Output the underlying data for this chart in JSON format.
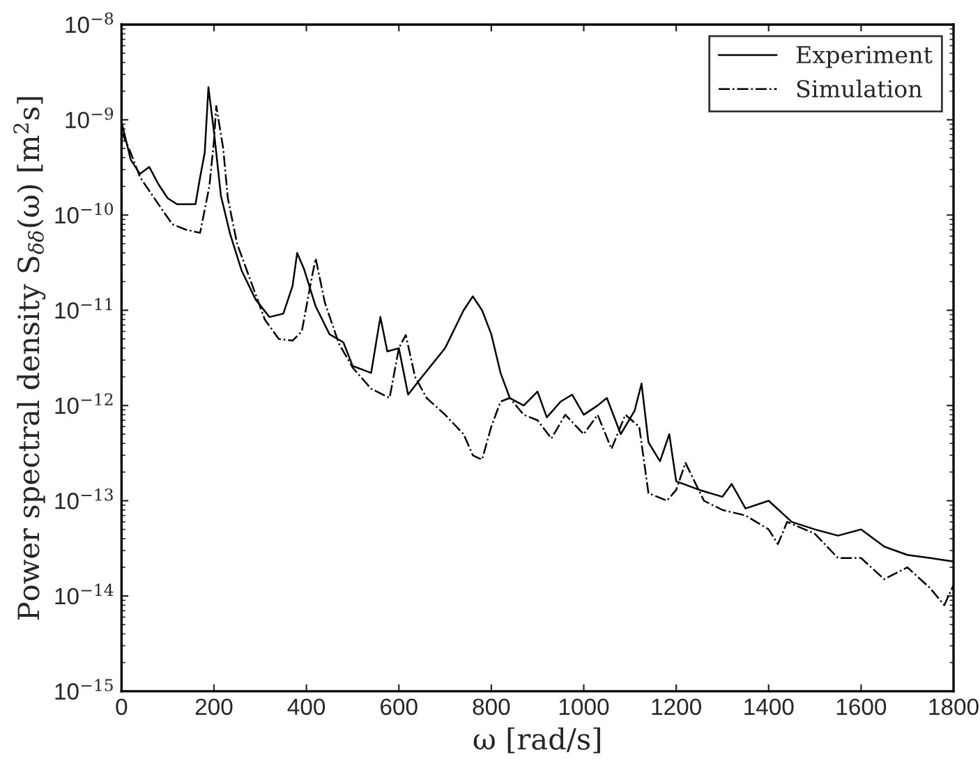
{
  "chart_data": {
    "type": "line",
    "xlabel": "ω [rad/s]",
    "ylabel": "Power spectral density S$_{δδ}$(ω) [m$^{2}$s]",
    "log": "y",
    "xlim": [
      0,
      1800
    ],
    "xticks": [
      0,
      200,
      400,
      600,
      800,
      1000,
      1200,
      1400,
      1600,
      1800
    ],
    "ylim": [
      1e-15,
      1e-08
    ],
    "yticks": [
      {
        "value": 1e-15,
        "label": "10$^{−15}$"
      },
      {
        "value": 1e-14,
        "label": "10$^{−14}$"
      },
      {
        "value": 1e-13,
        "label": "10$^{−13}$"
      },
      {
        "value": 1e-12,
        "label": "10$^{−12}$"
      },
      {
        "value": 1e-11,
        "label": "10$^{−11}$"
      },
      {
        "value": 1e-10,
        "label": "10$^{−10}$"
      },
      {
        "value": 1e-09,
        "label": "10$^{−9}$"
      },
      {
        "value": 1e-08,
        "label": "10$^{−8}$"
      }
    ],
    "grid": false,
    "legend": "top right",
    "series": [
      {
        "name": "Experiment",
        "color": "#000000",
        "line_style": "solid",
        "x": [
          0,
          20,
          40,
          60,
          80,
          100,
          120,
          140,
          160,
          170,
          180,
          188,
          200,
          215,
          235,
          260,
          290,
          320,
          350,
          370,
          380,
          395,
          420,
          450,
          480,
          500,
          540,
          560,
          575,
          600,
          620,
          650,
          700,
          740,
          760,
          780,
          800,
          820,
          840,
          870,
          900,
          920,
          950,
          975,
          1000,
          1030,
          1050,
          1080,
          1110,
          1125,
          1140,
          1165,
          1185,
          1200,
          1250,
          1300,
          1320,
          1350,
          1400,
          1450,
          1500,
          1550,
          1600,
          1650,
          1700,
          1750,
          1800
        ],
        "values": [
          9.5e-10,
          3.8e-10,
          2.7e-10,
          3.2e-10,
          2.1e-10,
          1.5e-10,
          1.3e-10,
          1.3e-10,
          1.3e-10,
          2.5e-10,
          4.5e-10,
          2.2e-09,
          7.5e-10,
          1.6e-10,
          6.3e-11,
          2.6e-11,
          1.3e-11,
          8.5e-12,
          9.2e-12,
          1.8e-11,
          4e-11,
          2.7e-11,
          1.1e-11,
          5.6e-12,
          4.6e-12,
          2.6e-12,
          2.2e-12,
          8.5e-12,
          3.7e-12,
          4e-12,
          1.3e-12,
          2e-12,
          4e-12,
          1e-11,
          1.4e-11,
          1e-11,
          5.6e-12,
          2.2e-12,
          1.2e-12,
          1e-12,
          1.4e-12,
          7.5e-13,
          1.1e-12,
          1.3e-12,
          8e-13,
          1e-12,
          1.2e-12,
          5e-13,
          8.8e-13,
          1.7e-12,
          4.1e-13,
          2.6e-13,
          5e-13,
          1.6e-13,
          1.3e-13,
          1.1e-13,
          1.5e-13,
          8.3e-14,
          1e-13,
          6e-14,
          5e-14,
          4.3e-14,
          5e-14,
          3.3e-14,
          2.7e-14,
          2.5e-14,
          2.3e-14
        ]
      },
      {
        "name": "Simulation",
        "color": "#000000",
        "line_style": "dashdot",
        "x": [
          0,
          20,
          40,
          60,
          90,
          110,
          140,
          170,
          190,
          200,
          205,
          220,
          230,
          250,
          280,
          310,
          340,
          370,
          390,
          410,
          420,
          440,
          470,
          500,
          540,
          580,
          600,
          615,
          635,
          660,
          700,
          740,
          760,
          780,
          800,
          820,
          840,
          870,
          900,
          930,
          960,
          1000,
          1030,
          1060,
          1090,
          1120,
          1140,
          1180,
          1200,
          1220,
          1260,
          1300,
          1350,
          1400,
          1420,
          1440,
          1500,
          1550,
          1600,
          1650,
          1700,
          1750,
          1780,
          1800
        ],
        "values": [
          7.5e-10,
          4.5e-10,
          2.5e-10,
          1.8e-10,
          1.1e-10,
          8e-11,
          7e-11,
          6.5e-11,
          2e-10,
          6e-10,
          1.4e-09,
          5e-10,
          1.5e-10,
          5e-11,
          2e-11,
          8e-12,
          5e-12,
          4.8e-12,
          6e-12,
          2e-11,
          3.5e-11,
          1.2e-11,
          4.5e-12,
          2.5e-12,
          1.5e-12,
          1.2e-12,
          4e-12,
          5.5e-12,
          2e-12,
          1.2e-12,
          8e-13,
          5e-13,
          3e-13,
          2.7e-13,
          6e-13,
          1.1e-12,
          1.2e-12,
          8e-13,
          7e-13,
          4.5e-13,
          8e-13,
          5e-13,
          8e-13,
          3.5e-13,
          8e-13,
          6e-13,
          1.2e-13,
          1e-13,
          1.3e-13,
          2.5e-13,
          1e-13,
          8e-14,
          7e-14,
          5e-14,
          3.5e-14,
          6e-14,
          4.5e-14,
          2.5e-14,
          2.5e-14,
          1.5e-14,
          2e-14,
          1.2e-14,
          8e-15,
          1.3e-14
        ]
      }
    ]
  }
}
